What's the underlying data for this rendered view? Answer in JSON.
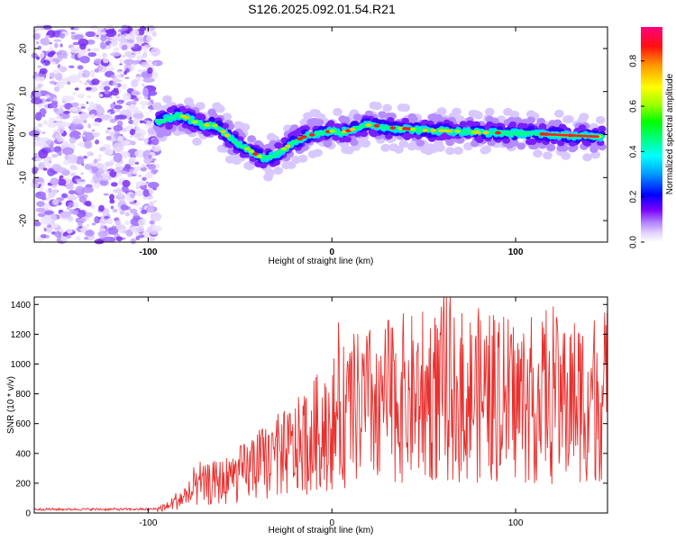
{
  "title": "S126.2025.092.01.54.R21",
  "chart_data": [
    {
      "type": "heatmap",
      "title": "S126.2025.092.01.54.R21",
      "xlabel": "Height of straight line (km)",
      "ylabel": "Frequency (Hz)",
      "xlim": [
        -162,
        150
      ],
      "ylim": [
        -25,
        25
      ],
      "xticks": [
        -100,
        0,
        100
      ],
      "yticks": [
        -20,
        -10,
        0,
        10,
        20
      ],
      "noise_region_x": [
        -162,
        -95
      ],
      "ridge": {
        "x": [
          -95,
          -90,
          -85,
          -80,
          -75,
          -70,
          -65,
          -60,
          -55,
          -50,
          -45,
          -40,
          -35,
          -30,
          -25,
          -20,
          -15,
          -10,
          -5,
          0,
          5,
          10,
          15,
          20,
          25,
          30,
          40,
          50,
          60,
          70,
          80,
          90,
          100,
          110,
          120,
          130,
          140,
          148
        ],
        "y": [
          3.0,
          3.5,
          4.5,
          4.2,
          3.0,
          2.0,
          2.5,
          1.0,
          -1.0,
          -2.5,
          -3.5,
          -5.0,
          -5.5,
          -4.5,
          -3.0,
          -1.5,
          -0.5,
          0.0,
          0.5,
          0.8,
          0.5,
          1.0,
          1.8,
          2.2,
          2.0,
          1.6,
          1.4,
          1.0,
          0.9,
          0.7,
          0.5,
          0.4,
          0.3,
          0.2,
          0.0,
          -0.2,
          -0.4,
          -0.5
        ]
      },
      "colorbar": {
        "label": "Normalized spectral amplitude",
        "range": [
          0,
          0.95
        ],
        "ticks": [
          0.0,
          0.2,
          0.4,
          0.6,
          0.8
        ]
      }
    },
    {
      "type": "line",
      "xlabel": "Height of straight line (km)",
      "ylabel": "SNR (10 * v/v)",
      "xlim": [
        -162,
        150
      ],
      "ylim": [
        0,
        1450
      ],
      "xticks": [
        -100,
        0,
        100
      ],
      "yticks": [
        0,
        200,
        400,
        600,
        800,
        1000,
        1200,
        1400
      ],
      "color": "#e8312f",
      "x": [
        -162,
        -140,
        -120,
        -100,
        -95,
        -90,
        -85,
        -80,
        -75,
        -70,
        -65,
        -60,
        -55,
        -50,
        -45,
        -40,
        -35,
        -30,
        -25,
        -20,
        -15,
        -10,
        -5,
        0,
        5,
        10,
        15,
        20,
        25,
        30,
        35,
        40,
        45,
        50,
        55,
        60,
        65,
        70,
        75,
        80,
        85,
        90,
        95,
        100,
        105,
        110,
        115,
        120,
        125,
        130,
        135,
        140,
        145,
        150
      ],
      "y": [
        25,
        25,
        25,
        25,
        28,
        40,
        80,
        110,
        150,
        180,
        200,
        210,
        230,
        260,
        290,
        320,
        350,
        380,
        400,
        430,
        470,
        520,
        560,
        600,
        640,
        680,
        700,
        720,
        730,
        750,
        760,
        770,
        770,
        780,
        790,
        800,
        790,
        780,
        780,
        790,
        780,
        770,
        760,
        760,
        750,
        760,
        770,
        770,
        760,
        760,
        770,
        780,
        790,
        790
      ]
    }
  ]
}
